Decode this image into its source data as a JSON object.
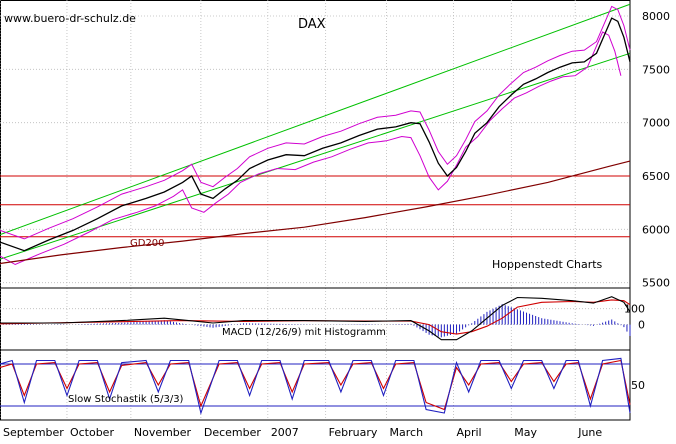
{
  "watermark": "www.buero-dr-schulz.de",
  "chart_data": {
    "type": "line",
    "title": "DAX",
    "source": "Hoppenstedt Charts",
    "x_months": [
      "September",
      "October",
      "November",
      "December",
      "2007",
      "February",
      "March",
      "April",
      "May",
      "June"
    ],
    "price_panel": {
      "y_ticks": [
        5500,
        6000,
        6500,
        7000,
        7500,
        8000
      ],
      "ylim": [
        5450,
        8150
      ],
      "support_lines": [
        6500,
        6230,
        5930
      ],
      "ma_label": "GD200",
      "series": [
        {
          "name": "DAX",
          "points": [
            [
              0,
              5880
            ],
            [
              8,
              5800
            ],
            [
              16,
              5900
            ],
            [
              24,
              5990
            ],
            [
              32,
              6100
            ],
            [
              40,
              6220
            ],
            [
              48,
              6290
            ],
            [
              54,
              6350
            ],
            [
              60,
              6440
            ],
            [
              63,
              6500
            ],
            [
              66,
              6330
            ],
            [
              70,
              6290
            ],
            [
              74,
              6380
            ],
            [
              78,
              6460
            ],
            [
              82,
              6570
            ],
            [
              88,
              6650
            ],
            [
              94,
              6700
            ],
            [
              100,
              6690
            ],
            [
              106,
              6760
            ],
            [
              112,
              6810
            ],
            [
              118,
              6880
            ],
            [
              124,
              6940
            ],
            [
              130,
              6960
            ],
            [
              135,
              7000
            ],
            [
              138,
              6990
            ],
            [
              141,
              6820
            ],
            [
              144,
              6620
            ],
            [
              147,
              6500
            ],
            [
              150,
              6580
            ],
            [
              153,
              6730
            ],
            [
              156,
              6900
            ],
            [
              160,
              7000
            ],
            [
              164,
              7150
            ],
            [
              168,
              7260
            ],
            [
              172,
              7360
            ],
            [
              176,
              7410
            ],
            [
              180,
              7470
            ],
            [
              184,
              7520
            ],
            [
              188,
              7560
            ],
            [
              192,
              7570
            ],
            [
              196,
              7650
            ],
            [
              199,
              7850
            ],
            [
              201,
              7980
            ],
            [
              203,
              7950
            ],
            [
              205,
              7800
            ],
            [
              207,
              7570
            ]
          ]
        },
        {
          "name": "GD200",
          "points": [
            [
              0,
              5680
            ],
            [
              20,
              5760
            ],
            [
              40,
              5830
            ],
            [
              60,
              5890
            ],
            [
              80,
              5960
            ],
            [
              100,
              6020
            ],
            [
              120,
              6110
            ],
            [
              140,
              6210
            ],
            [
              160,
              6320
            ],
            [
              180,
              6440
            ],
            [
              200,
              6590
            ],
            [
              207,
              6640
            ]
          ]
        }
      ]
    },
    "macd_panel": {
      "label": "MACD (12/26/9) mit Histogramm",
      "y_ticks": [
        0,
        100
      ],
      "ylim": [
        -160,
        230
      ],
      "series": [
        {
          "name": "MACD",
          "points": [
            [
              0,
              10
            ],
            [
              20,
              10
            ],
            [
              40,
              25
            ],
            [
              54,
              40
            ],
            [
              62,
              25
            ],
            [
              70,
              10
            ],
            [
              80,
              25
            ],
            [
              100,
              25
            ],
            [
              120,
              20
            ],
            [
              135,
              25
            ],
            [
              141,
              -40
            ],
            [
              145,
              -95
            ],
            [
              150,
              -95
            ],
            [
              155,
              -40
            ],
            [
              160,
              40
            ],
            [
              165,
              120
            ],
            [
              170,
              170
            ],
            [
              178,
              165
            ],
            [
              188,
              150
            ],
            [
              195,
              135
            ],
            [
              201,
              175
            ],
            [
              205,
              140
            ],
            [
              207,
              80
            ]
          ]
        },
        {
          "name": "Signal",
          "points": [
            [
              0,
              5
            ],
            [
              40,
              18
            ],
            [
              60,
              25
            ],
            [
              80,
              20
            ],
            [
              100,
              24
            ],
            [
              120,
              22
            ],
            [
              135,
              22
            ],
            [
              141,
              0
            ],
            [
              145,
              -45
            ],
            [
              150,
              -60
            ],
            [
              155,
              -45
            ],
            [
              160,
              -10
            ],
            [
              165,
              40
            ],
            [
              170,
              110
            ],
            [
              178,
              140
            ],
            [
              188,
              145
            ],
            [
              195,
              140
            ],
            [
              201,
              155
            ],
            [
              205,
              150
            ],
            [
              207,
              125
            ]
          ]
        }
      ]
    },
    "stochastic_panel": {
      "label": "Slow Stochastik (5/3/3)",
      "y_ticks": [
        50
      ],
      "ylim": [
        0,
        100
      ],
      "band_levels": [
        80,
        20
      ],
      "series": [
        {
          "name": "%K",
          "points": [
            [
              0,
              80
            ],
            [
              4,
              85
            ],
            [
              8,
              25
            ],
            [
              12,
              85
            ],
            [
              18,
              85
            ],
            [
              22,
              35
            ],
            [
              26,
              85
            ],
            [
              32,
              85
            ],
            [
              36,
              30
            ],
            [
              40,
              82
            ],
            [
              48,
              85
            ],
            [
              52,
              40
            ],
            [
              56,
              85
            ],
            [
              62,
              85
            ],
            [
              66,
              10
            ],
            [
              72,
              85
            ],
            [
              78,
              85
            ],
            [
              82,
              35
            ],
            [
              86,
              85
            ],
            [
              92,
              85
            ],
            [
              96,
              30
            ],
            [
              100,
              85
            ],
            [
              108,
              85
            ],
            [
              112,
              40
            ],
            [
              116,
              85
            ],
            [
              122,
              85
            ],
            [
              126,
              35
            ],
            [
              130,
              85
            ],
            [
              136,
              85
            ],
            [
              140,
              15
            ],
            [
              146,
              10
            ],
            [
              150,
              82
            ],
            [
              154,
              40
            ],
            [
              158,
              85
            ],
            [
              164,
              85
            ],
            [
              168,
              45
            ],
            [
              172,
              85
            ],
            [
              178,
              85
            ],
            [
              182,
              45
            ],
            [
              186,
              85
            ],
            [
              190,
              85
            ],
            [
              194,
              20
            ],
            [
              198,
              85
            ],
            [
              204,
              88
            ],
            [
              207,
              10
            ]
          ]
        },
        {
          "name": "%D",
          "points": [
            [
              0,
              75
            ],
            [
              4,
              80
            ],
            [
              8,
              35
            ],
            [
              12,
              80
            ],
            [
              18,
              82
            ],
            [
              22,
              45
            ],
            [
              26,
              80
            ],
            [
              32,
              82
            ],
            [
              36,
              40
            ],
            [
              40,
              78
            ],
            [
              48,
              82
            ],
            [
              52,
              50
            ],
            [
              56,
              80
            ],
            [
              62,
              82
            ],
            [
              66,
              20
            ],
            [
              72,
              80
            ],
            [
              78,
              82
            ],
            [
              82,
              45
            ],
            [
              86,
              80
            ],
            [
              92,
              82
            ],
            [
              96,
              40
            ],
            [
              100,
              80
            ],
            [
              108,
              82
            ],
            [
              112,
              50
            ],
            [
              116,
              80
            ],
            [
              122,
              82
            ],
            [
              126,
              45
            ],
            [
              130,
              80
            ],
            [
              136,
              82
            ],
            [
              140,
              25
            ],
            [
              146,
              15
            ],
            [
              150,
              75
            ],
            [
              154,
              50
            ],
            [
              158,
              80
            ],
            [
              164,
              82
            ],
            [
              168,
              55
            ],
            [
              172,
              80
            ],
            [
              178,
              82
            ],
            [
              182,
              55
            ],
            [
              186,
              80
            ],
            [
              190,
              82
            ],
            [
              194,
              30
            ],
            [
              198,
              80
            ],
            [
              204,
              85
            ],
            [
              207,
              22
            ]
          ]
        }
      ]
    }
  }
}
